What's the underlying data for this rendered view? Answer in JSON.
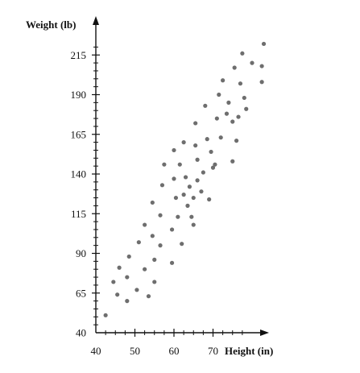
{
  "chart_data": {
    "type": "scatter",
    "title": "",
    "xlabel": "Height (in)",
    "ylabel": "Weight (lb)",
    "xlim": [
      40,
      80
    ],
    "ylim": [
      40,
      230
    ],
    "xticks": [
      40,
      50,
      60,
      70
    ],
    "yticks": [
      40,
      65,
      90,
      115,
      140,
      165,
      190,
      215
    ],
    "grid": false,
    "legend": "none",
    "colors": {
      "point": "#6e6e6e",
      "axis": "#111111",
      "text": "#111111"
    },
    "series": [
      {
        "values": [
          [
            42.5,
            51
          ],
          [
            44.5,
            72
          ],
          [
            45.5,
            64
          ],
          [
            46,
            81
          ],
          [
            48,
            60
          ],
          [
            48,
            75
          ],
          [
            48.5,
            88
          ],
          [
            50.5,
            67
          ],
          [
            51,
            97
          ],
          [
            52.5,
            80
          ],
          [
            52.5,
            108
          ],
          [
            53.5,
            63
          ],
          [
            54.5,
            101
          ],
          [
            54.5,
            122
          ],
          [
            55,
            86
          ],
          [
            55,
            72
          ],
          [
            56.5,
            95
          ],
          [
            56.5,
            114
          ],
          [
            57,
            133
          ],
          [
            57.5,
            146
          ],
          [
            59.5,
            105
          ],
          [
            59.5,
            84
          ],
          [
            60,
            155
          ],
          [
            60,
            137
          ],
          [
            60.5,
            125
          ],
          [
            61,
            113
          ],
          [
            61.5,
            146
          ],
          [
            62,
            96
          ],
          [
            62.5,
            160
          ],
          [
            62.5,
            127
          ],
          [
            63,
            138
          ],
          [
            63.5,
            120
          ],
          [
            64,
            132
          ],
          [
            64.5,
            113
          ],
          [
            65,
            108
          ],
          [
            65,
            125
          ],
          [
            65.5,
            172
          ],
          [
            65.5,
            158
          ],
          [
            66,
            149
          ],
          [
            66,
            136
          ],
          [
            67,
            129
          ],
          [
            67.5,
            141
          ],
          [
            68,
            183
          ],
          [
            68.5,
            162
          ],
          [
            69,
            124
          ],
          [
            69.5,
            154
          ],
          [
            70,
            144
          ],
          [
            70.5,
            146
          ],
          [
            71,
            175
          ],
          [
            71.5,
            190
          ],
          [
            72,
            163
          ],
          [
            72.5,
            199
          ],
          [
            73.5,
            178
          ],
          [
            74,
            185
          ],
          [
            75,
            148
          ],
          [
            75,
            173
          ],
          [
            75.5,
            207
          ],
          [
            76,
            161
          ],
          [
            76.5,
            176
          ],
          [
            77,
            197
          ],
          [
            77.5,
            216
          ],
          [
            78,
            188
          ],
          [
            78.5,
            181
          ],
          [
            80,
            210
          ],
          [
            82.5,
            208
          ],
          [
            82.5,
            198
          ],
          [
            83,
            222
          ]
        ]
      }
    ]
  }
}
